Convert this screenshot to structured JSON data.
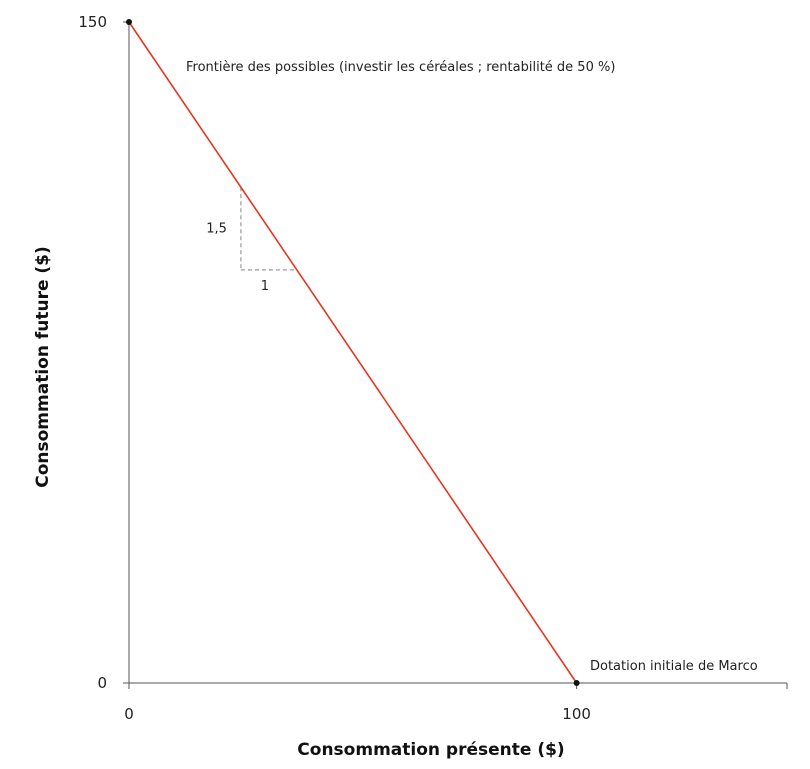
{
  "chart_data": {
    "type": "line",
    "xlabel": "Consommation présente ($)",
    "ylabel": "Consommation future ($)",
    "xlim": [
      0,
      147
    ],
    "ylim": [
      0,
      150
    ],
    "x_ticks": [
      {
        "value": 0,
        "label": "0"
      },
      {
        "value": 100,
        "label": "100"
      }
    ],
    "y_ticks": [
      {
        "value": 0,
        "label": "0"
      },
      {
        "value": 150,
        "label": "150"
      }
    ],
    "grid": false,
    "series": [
      {
        "name": "Frontière des possibles (investir les céréales ; rentabilité de 50 %)",
        "color": "#e8351f",
        "points": [
          {
            "x": 0,
            "y": 150
          },
          {
            "x": 100,
            "y": 0
          }
        ]
      }
    ],
    "points": [
      {
        "x": 0,
        "y": 150,
        "label": ""
      },
      {
        "x": 100,
        "y": 0,
        "label": "Dotation initiale de Marco"
      }
    ],
    "slope_triangle": {
      "x_from": 25,
      "x_to": 37.5,
      "y_top": 112.5,
      "y_bottom": 93.75,
      "rise_label": "1,5",
      "run_label": "1"
    },
    "colors": {
      "line": "#e8351f",
      "axis": "#555555",
      "dash": "#999999",
      "point": "#111111"
    }
  }
}
